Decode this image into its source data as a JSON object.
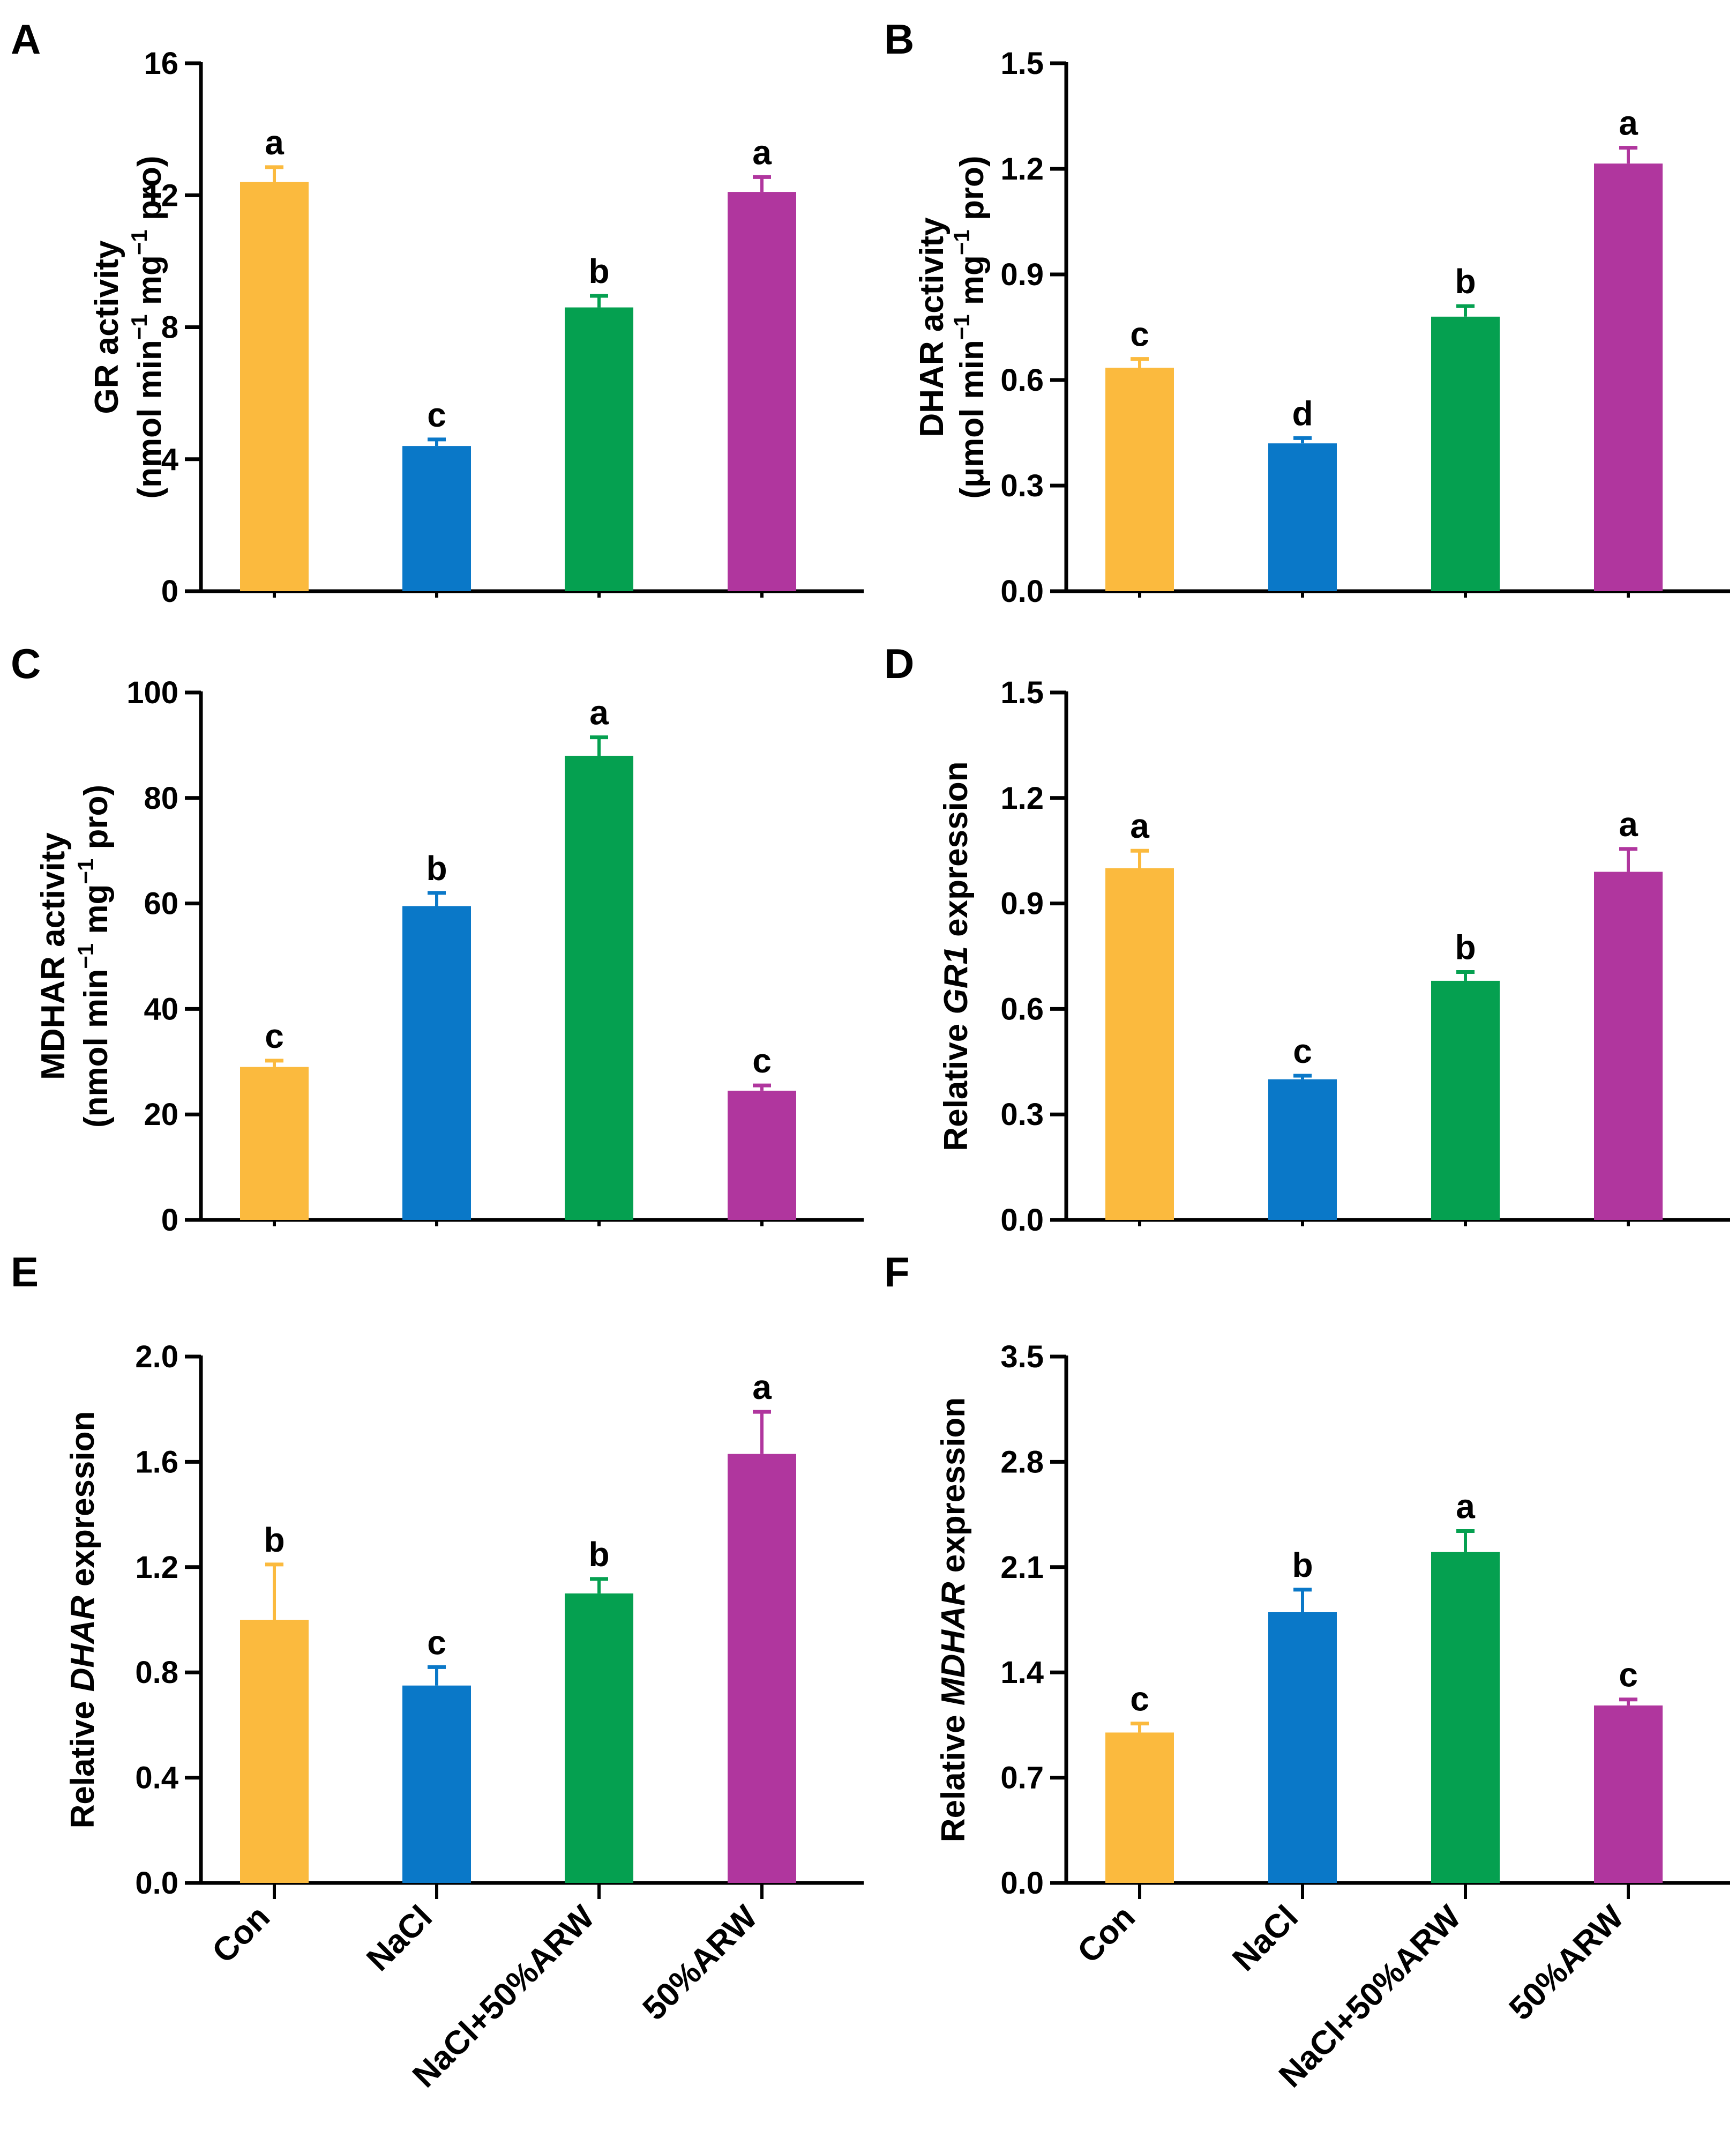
{
  "colors": {
    "Con": "#FBBA3E",
    "NaCl": "#0A78C8",
    "NaCl+50%ARW": "#05A050",
    "50%ARW": "#B0369E"
  },
  "chart_data": [
    {
      "panel": "A",
      "type": "bar",
      "categories": [
        "Con",
        "NaCl",
        "NaCl+50%ARW",
        "50%ARW"
      ],
      "values": [
        12.4,
        4.4,
        8.6,
        12.1
      ],
      "errors": [
        0.45,
        0.2,
        0.35,
        0.45
      ],
      "significance": [
        "a",
        "c",
        "b",
        "a"
      ],
      "ylabel_line1": "GR activity",
      "ylabel_line2": {
        "pre": "(nmol min",
        "sup1": "−1",
        "mid": " mg",
        "sup2": "−1",
        "post": " pro)"
      },
      "ylim": [
        0,
        16
      ],
      "ticks": [
        "0",
        "4",
        "8",
        "12",
        "16"
      ],
      "show_categories": false
    },
    {
      "panel": "B",
      "type": "bar",
      "categories": [
        "Con",
        "NaCl",
        "NaCl+50%ARW",
        "50%ARW"
      ],
      "values": [
        0.635,
        0.42,
        0.78,
        1.215
      ],
      "errors": [
        0.025,
        0.015,
        0.03,
        0.045
      ],
      "significance": [
        "c",
        "d",
        "b",
        "a"
      ],
      "ylabel_line1": "DHAR activity",
      "ylabel_line2": {
        "pre": "(μmol min",
        "sup1": "−1",
        "mid": " mg",
        "sup2": "−1",
        "post": " pro)"
      },
      "ylim": [
        0,
        1.5
      ],
      "ticks": [
        "0.0",
        "0.3",
        "0.6",
        "0.9",
        "1.2",
        "1.5"
      ],
      "show_categories": false
    },
    {
      "panel": "C",
      "type": "bar",
      "categories": [
        "Con",
        "NaCl",
        "NaCl+50%ARW",
        "50%ARW"
      ],
      "values": [
        29,
        59.5,
        88,
        24.5
      ],
      "errors": [
        1.2,
        2.5,
        3.5,
        1.0
      ],
      "significance": [
        "c",
        "b",
        "a",
        "c"
      ],
      "ylabel_line1": "MDHAR activity",
      "ylabel_line2": {
        "pre": "(nmol min",
        "sup1": "−1",
        "mid": " mg",
        "sup2": "−1",
        "post": " pro)"
      },
      "ylim": [
        0,
        100
      ],
      "ticks": [
        "0",
        "20",
        "40",
        "60",
        "80",
        "100"
      ],
      "show_categories": false
    },
    {
      "panel": "D",
      "type": "bar",
      "categories": [
        "Con",
        "NaCl",
        "NaCl+50%ARW",
        "50%ARW"
      ],
      "values": [
        1.0,
        0.4,
        0.68,
        0.99
      ],
      "errors": [
        0.05,
        0.01,
        0.025,
        0.065
      ],
      "significance": [
        "a",
        "c",
        "b",
        "a"
      ],
      "ylabel_pre": "Relative ",
      "ylabel_italic": "GR1",
      "ylabel_post": " expression",
      "ylim": [
        0,
        1.5
      ],
      "ticks": [
        "0.0",
        "0.3",
        "0.6",
        "0.9",
        "1.2",
        "1.5"
      ],
      "show_categories": false
    },
    {
      "panel": "E",
      "type": "bar",
      "categories": [
        "Con",
        "NaCl",
        "NaCl+50%ARW",
        "50%ARW"
      ],
      "values": [
        1.0,
        0.75,
        1.1,
        1.63
      ],
      "errors": [
        0.21,
        0.07,
        0.055,
        0.16
      ],
      "significance": [
        "b",
        "c",
        "b",
        "a"
      ],
      "ylabel_pre": "Relative ",
      "ylabel_italic": "DHAR",
      "ylabel_post": " expression",
      "ylim": [
        0,
        2.0
      ],
      "ticks": [
        "0.0",
        "0.4",
        "0.8",
        "1.2",
        "1.6",
        "2.0"
      ],
      "show_categories": true
    },
    {
      "panel": "F",
      "type": "bar",
      "categories": [
        "Con",
        "NaCl",
        "NaCl+50%ARW",
        "50%ARW"
      ],
      "values": [
        1.0,
        1.8,
        2.2,
        1.18
      ],
      "errors": [
        0.06,
        0.15,
        0.14,
        0.04
      ],
      "significance": [
        "c",
        "b",
        "a",
        "c"
      ],
      "ylabel_pre": "Relative ",
      "ylabel_italic": "MDHAR",
      "ylabel_post": " expression",
      "ylim": [
        0,
        3.5
      ],
      "ticks": [
        "0.0",
        "0.7",
        "1.4",
        "2.1",
        "2.8",
        "3.5"
      ],
      "show_categories": true
    }
  ]
}
